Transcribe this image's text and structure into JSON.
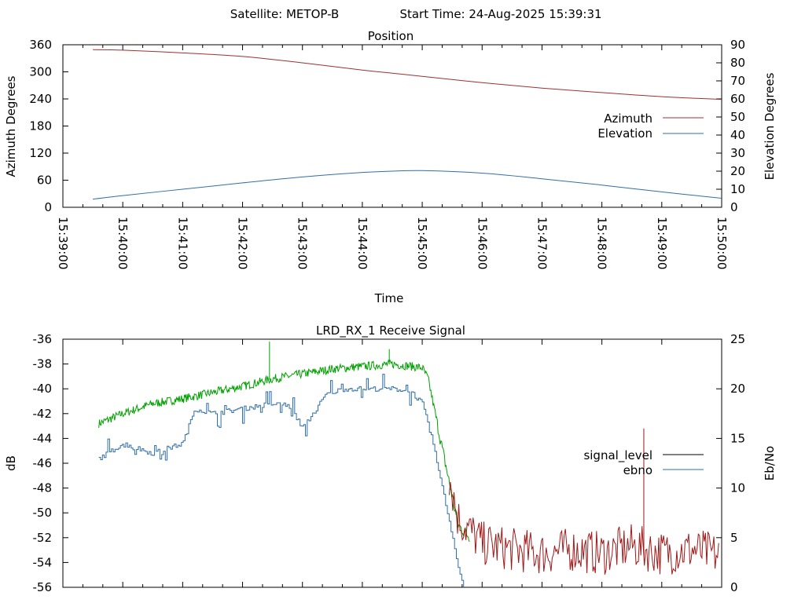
{
  "header": {
    "satellite": "Satellite: METOP-B",
    "start_time": "Start Time: 24-Aug-2025 15:39:31"
  },
  "colors": {
    "azimuth": "#a03030",
    "elevation": "#2f6fa8",
    "signal_green": "#00a000",
    "signal_level": "#000000",
    "ebno": "#2f6fa8",
    "noise_red": "#a01818"
  },
  "chart_data": [
    {
      "type": "line",
      "title": "Position",
      "xlabel": "Time",
      "ylabel": "Azimuth Degrees",
      "y2label": "Elevation Degrees",
      "x_tick_labels": [
        "15:39:00",
        "15:40:00",
        "15:41:00",
        "15:42:00",
        "15:43:00",
        "15:44:00",
        "15:45:00",
        "15:46:00",
        "15:47:00",
        "15:48:00",
        "15:49:00",
        "15:50:00"
      ],
      "xlim_minutes": [
        0,
        11
      ],
      "ylim": [
        0,
        360
      ],
      "y_ticks": [
        0,
        60,
        120,
        180,
        240,
        300,
        360
      ],
      "y2lim": [
        0,
        90
      ],
      "y2_ticks": [
        0,
        10,
        20,
        30,
        40,
        50,
        60,
        70,
        80,
        90
      ],
      "legend_position": "right",
      "series": [
        {
          "name": "Azimuth",
          "axis": "y",
          "x_minutes": [
            0.5,
            1,
            2,
            3,
            4,
            5,
            5.5,
            6,
            7,
            8,
            9,
            10,
            11
          ],
          "values": [
            349,
            348,
            342,
            334,
            320,
            304,
            297,
            290,
            276,
            264,
            254,
            245,
            239
          ]
        },
        {
          "name": "Elevation",
          "axis": "y2",
          "x_minutes": [
            0.5,
            1,
            2,
            3,
            4,
            5,
            5.5,
            6,
            7,
            8,
            9,
            10,
            11
          ],
          "values": [
            4.5,
            6.5,
            10,
            13.5,
            16.8,
            19.3,
            20,
            20.3,
            18.9,
            15.8,
            12.3,
            8.5,
            5
          ]
        }
      ]
    },
    {
      "type": "line",
      "title": "LRD_RX_1 Receive Signal",
      "xlabel": "",
      "ylabel": "dB",
      "y2label": "Eb/No",
      "xlim_minutes": [
        0,
        11
      ],
      "ylim": [
        -56,
        -36
      ],
      "y_ticks": [
        -56,
        -54,
        -52,
        -50,
        -48,
        -46,
        -44,
        -42,
        -40,
        -38,
        -36
      ],
      "y2lim": [
        0,
        25
      ],
      "y2_ticks": [
        0,
        5,
        10,
        15,
        20,
        25
      ],
      "legend_position": "right",
      "series": [
        {
          "name": "signal_level",
          "axis": "y",
          "x_minutes": [
            0.6,
            1,
            1.5,
            2,
            2.5,
            3,
            3.5,
            4,
            4.5,
            5,
            5.5,
            6,
            6.1,
            6.3,
            6.6,
            7,
            7.5,
            8,
            8.5,
            9,
            9.5,
            10,
            10.5,
            11
          ],
          "values": [
            -42.8,
            -42,
            -41.2,
            -40.8,
            -40.3,
            -39.8,
            -39.2,
            -38.8,
            -38.4,
            -38.2,
            -38,
            -38.3,
            -39.2,
            -44,
            -51,
            -53,
            -53.5,
            -53.8,
            -53.5,
            -53.8,
            -53.2,
            -53.8,
            -53.5,
            -54
          ],
          "spikes": [
            {
              "x_minutes": 3.45,
              "value": -36.2
            },
            {
              "x_minutes": 5.45,
              "value": -36.8
            },
            {
              "x_minutes": 9.7,
              "value": -43.2
            }
          ]
        },
        {
          "name": "ebno",
          "axis": "y2",
          "x_minutes": [
            0.6,
            0.75,
            1,
            1.5,
            2,
            2.2,
            2.5,
            3,
            3.5,
            3.8,
            4,
            4.4,
            4.7,
            5,
            5.5,
            5.8,
            6,
            6.2,
            6.4,
            6.6,
            6.7
          ],
          "values": [
            13,
            13.5,
            14.5,
            13.5,
            14.5,
            18,
            17.5,
            18,
            18.5,
            18.2,
            16,
            19.5,
            20,
            20,
            20,
            19.8,
            18.5,
            14,
            8,
            2,
            0
          ]
        }
      ]
    }
  ]
}
